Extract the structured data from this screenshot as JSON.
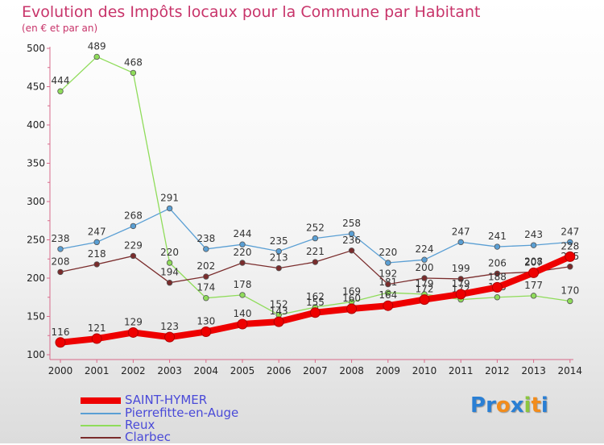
{
  "title": "Evolution des Impôts locaux pour la Commune par Habitant",
  "subtitle": "(en € et par an)",
  "logo": {
    "text": "Proxiti",
    "letters": [
      {
        "ch": "P",
        "color": "#2a7fd4"
      },
      {
        "ch": "r",
        "color": "#2a7fd4"
      },
      {
        "ch": "o",
        "color": "#f28c1c"
      },
      {
        "ch": "x",
        "color": "#2a7fd4"
      },
      {
        "ch": "i",
        "color": "#8cc63f"
      },
      {
        "ch": "t",
        "color": "#f28c1c"
      },
      {
        "ch": "i",
        "color": "#2a7fd4"
      }
    ]
  },
  "chart_data": {
    "type": "line",
    "title": "Evolution des Impôts locaux pour la Commune par Habitant",
    "subtitle": "(en € et par an)",
    "x": [
      "2000",
      "2001",
      "2002",
      "2003",
      "2004",
      "2005",
      "2006",
      "2007",
      "2008",
      "2009",
      "2010",
      "2011",
      "2012",
      "2013",
      "2014"
    ],
    "ylim": [
      100,
      500
    ],
    "yticks": [
      100,
      150,
      200,
      250,
      300,
      350,
      400,
      450,
      500
    ],
    "grid": false,
    "legend_position": "bottom-left",
    "series": [
      {
        "name": "Pierrefitte-en-Auge",
        "color": "#5a9fd4",
        "values": [
          238,
          247,
          268,
          291,
          238,
          244,
          235,
          252,
          258,
          220,
          224,
          247,
          241,
          243,
          247
        ],
        "labels": [
          "238",
          "247",
          "268",
          "291",
          "238",
          "244",
          "235",
          "252",
          "258",
          "220",
          "224",
          "247",
          "241",
          "243",
          "247"
        ]
      },
      {
        "name": "Reux",
        "color": "#8fdc5a",
        "values": [
          444,
          489,
          468,
          220,
          174,
          178,
          152,
          162,
          169,
          181,
          179,
          172,
          175,
          177,
          170
        ],
        "labels": [
          "444",
          "489",
          "468",
          "220",
          "174",
          "178",
          "152",
          "162",
          "169",
          "181",
          "179",
          "172",
          "175",
          "177",
          "170"
        ]
      },
      {
        "name": "Clarbec",
        "color": "#7a2c2c",
        "values": [
          208,
          218,
          229,
          194,
          202,
          220,
          213,
          221,
          236,
          192,
          200,
          199,
          206,
          208,
          215
        ],
        "labels": [
          "208",
          "218",
          "229",
          "194",
          "202",
          "220",
          "213",
          "221",
          "236",
          "192",
          "200",
          "199",
          "206",
          "208",
          "215"
        ]
      },
      {
        "name": "SAINT-HYMER",
        "color": "#ee0000",
        "values": [
          116,
          121,
          129,
          123,
          130,
          140,
          143,
          155,
          160,
          164,
          172,
          179,
          188,
          207,
          228
        ],
        "labels": [
          "116",
          "121",
          "129",
          "123",
          "130",
          "140",
          "143",
          "155",
          "160",
          "164",
          "172",
          "179",
          "188",
          "207",
          "228"
        ]
      }
    ],
    "legend": [
      {
        "name": "SAINT-HYMER",
        "color": "#ee0000"
      },
      {
        "name": "Pierrefitte-en-Auge",
        "color": "#5a9fd4"
      },
      {
        "name": "Reux",
        "color": "#8fdc5a"
      },
      {
        "name": "Clarbec",
        "color": "#7a2c2c"
      }
    ]
  }
}
